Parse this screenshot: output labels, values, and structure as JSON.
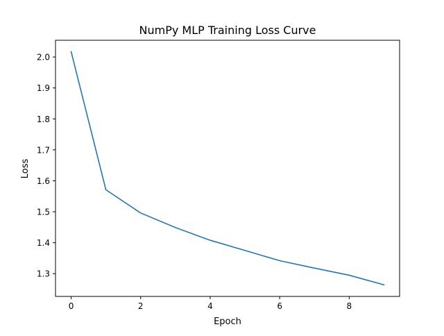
{
  "chart_data": {
    "type": "line",
    "title": "NumPy MLP Training Loss Curve",
    "xlabel": "Epoch",
    "ylabel": "Loss",
    "xlim": [
      -0.45,
      9.45
    ],
    "ylim": [
      1.2265,
      2.054
    ],
    "xticks": [
      0,
      2,
      4,
      6,
      8
    ],
    "xtick_labels": [
      "0",
      "2",
      "4",
      "6",
      "8"
    ],
    "yticks": [
      1.3,
      1.4,
      1.5,
      1.6,
      1.7,
      1.8,
      1.9,
      2.0
    ],
    "ytick_labels": [
      "1.3",
      "1.4",
      "1.5",
      "1.6",
      "1.7",
      "1.8",
      "1.9",
      "2.0"
    ],
    "grid": false,
    "series": [
      {
        "color": "#1f77b4",
        "x": [
          0,
          1,
          2,
          3,
          4,
          5,
          6,
          7,
          8,
          9
        ],
        "values": [
          2.017,
          1.571,
          1.496,
          1.449,
          1.408,
          1.375,
          1.342,
          1.318,
          1.295,
          1.264
        ]
      }
    ]
  }
}
